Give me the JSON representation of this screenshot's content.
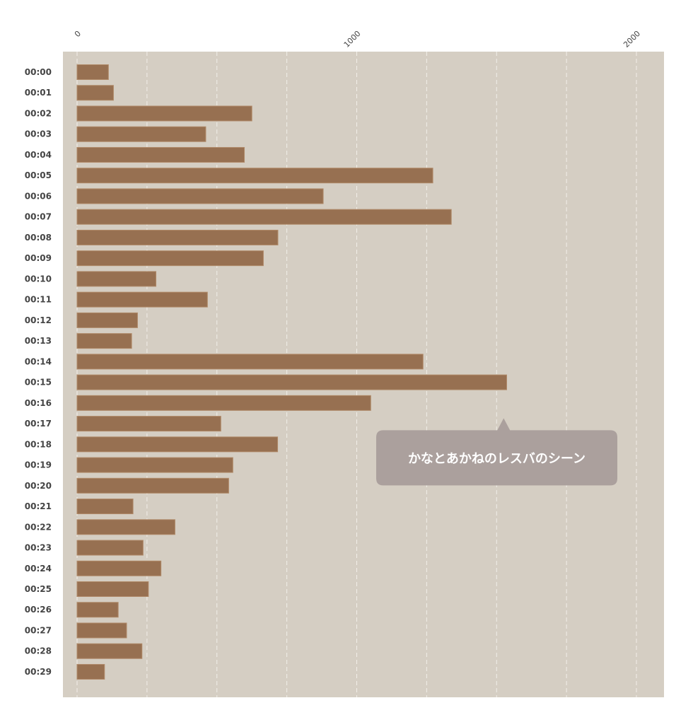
{
  "colors": {
    "plot_background": "#d5cec3",
    "bar": "#977051",
    "bar_edge": "#b08a69",
    "grid": "#f2efe9",
    "callout_background": "#aba09d",
    "callout_text": "#ffffff"
  },
  "chart_data": {
    "type": "bar",
    "orientation": "horizontal",
    "categories": [
      "00:00",
      "00:01",
      "00:02",
      "00:03",
      "00:04",
      "00:05",
      "00:06",
      "00:07",
      "00:08",
      "00:09",
      "00:10",
      "00:11",
      "00:12",
      "00:13",
      "00:14",
      "00:15",
      "00:16",
      "00:17",
      "00:18",
      "00:19",
      "00:20",
      "00:21",
      "00:22",
      "00:23",
      "00:24",
      "00:25",
      "00:26",
      "00:27",
      "00:28",
      "00:29"
    ],
    "values": [
      112,
      130,
      625,
      460,
      598,
      1272,
      880,
      1338,
      718,
      666,
      282,
      466,
      216,
      195,
      1237,
      1536,
      1050,
      514,
      717,
      557,
      542,
      200,
      350,
      236,
      300,
      255,
      147,
      177,
      232,
      98
    ],
    "xlim": [
      0,
      2000
    ],
    "xticks": [
      "0",
      "1000",
      "2000"
    ],
    "x_tick_values": [
      0,
      1000,
      2000
    ],
    "grid_step": 250,
    "grid": true,
    "title": "",
    "xlabel": "",
    "ylabel": "",
    "annotation": {
      "text": "かなとあかねのレスバのシーン",
      "category": "00:16",
      "value": 1500
    }
  }
}
